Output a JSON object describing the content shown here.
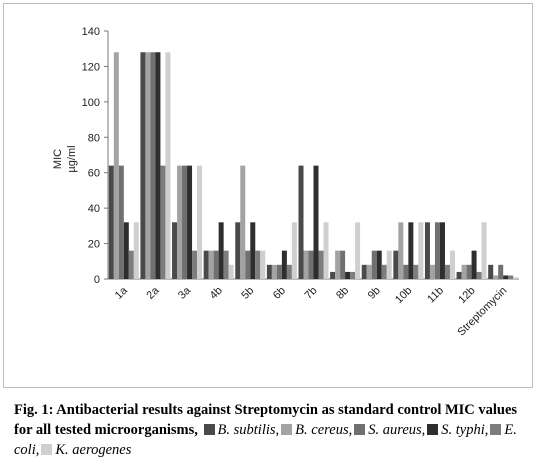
{
  "chart_data": {
    "type": "bar",
    "categories": [
      "1a",
      "2a",
      "3a",
      "4b",
      "5b",
      "6b",
      "7b",
      "8b",
      "9b",
      "10b",
      "11b",
      "12b",
      "Streptomycin"
    ],
    "series": [
      {
        "name": "B. subtilis",
        "color": "#4a4a4a",
        "values": [
          64,
          128,
          32,
          16,
          32,
          8,
          64,
          4,
          8,
          16,
          32,
          4,
          8
        ]
      },
      {
        "name": "B. cereus",
        "color": "#a3a3a3",
        "values": [
          128,
          128,
          64,
          16,
          64,
          8,
          16,
          16,
          8,
          32,
          8,
          8,
          2
        ]
      },
      {
        "name": "S. aureus",
        "color": "#707070",
        "values": [
          64,
          128,
          64,
          16,
          16,
          8,
          16,
          16,
          16,
          8,
          32,
          8,
          8
        ]
      },
      {
        "name": "S. typhi",
        "color": "#2e2e2e",
        "values": [
          32,
          128,
          64,
          32,
          32,
          16,
          64,
          4,
          16,
          32,
          32,
          16,
          2
        ]
      },
      {
        "name": "E. coli",
        "color": "#7d7d7d",
        "values": [
          16,
          64,
          16,
          16,
          16,
          8,
          16,
          4,
          8,
          8,
          8,
          4,
          2
        ]
      },
      {
        "name": "K. aerogenes",
        "color": "#cfcfcf",
        "values": [
          32,
          128,
          64,
          8,
          16,
          32,
          32,
          32,
          16,
          32,
          16,
          32,
          1
        ]
      }
    ],
    "ylabel": "MIC µg/ml",
    "ylim": [
      0,
      140
    ],
    "yticks": [
      0,
      20,
      40,
      60,
      80,
      100,
      120,
      140
    ],
    "grid": false,
    "legend": "in caption"
  },
  "caption": {
    "prefix": "Fig. 1: Antibacterial results against Streptomycin as standard control MIC values for all tested microorganisms,",
    "items": [
      {
        "label": "B. subtilis",
        "sep": ","
      },
      {
        "label": "B. cereus",
        "sep": ","
      },
      {
        "label": "S. aureus",
        "sep": ","
      },
      {
        "label": "S. typhi",
        "sep": ","
      },
      {
        "label": "E. coli",
        "sep": ","
      },
      {
        "label": "K. aerogenes",
        "sep": ""
      }
    ]
  }
}
